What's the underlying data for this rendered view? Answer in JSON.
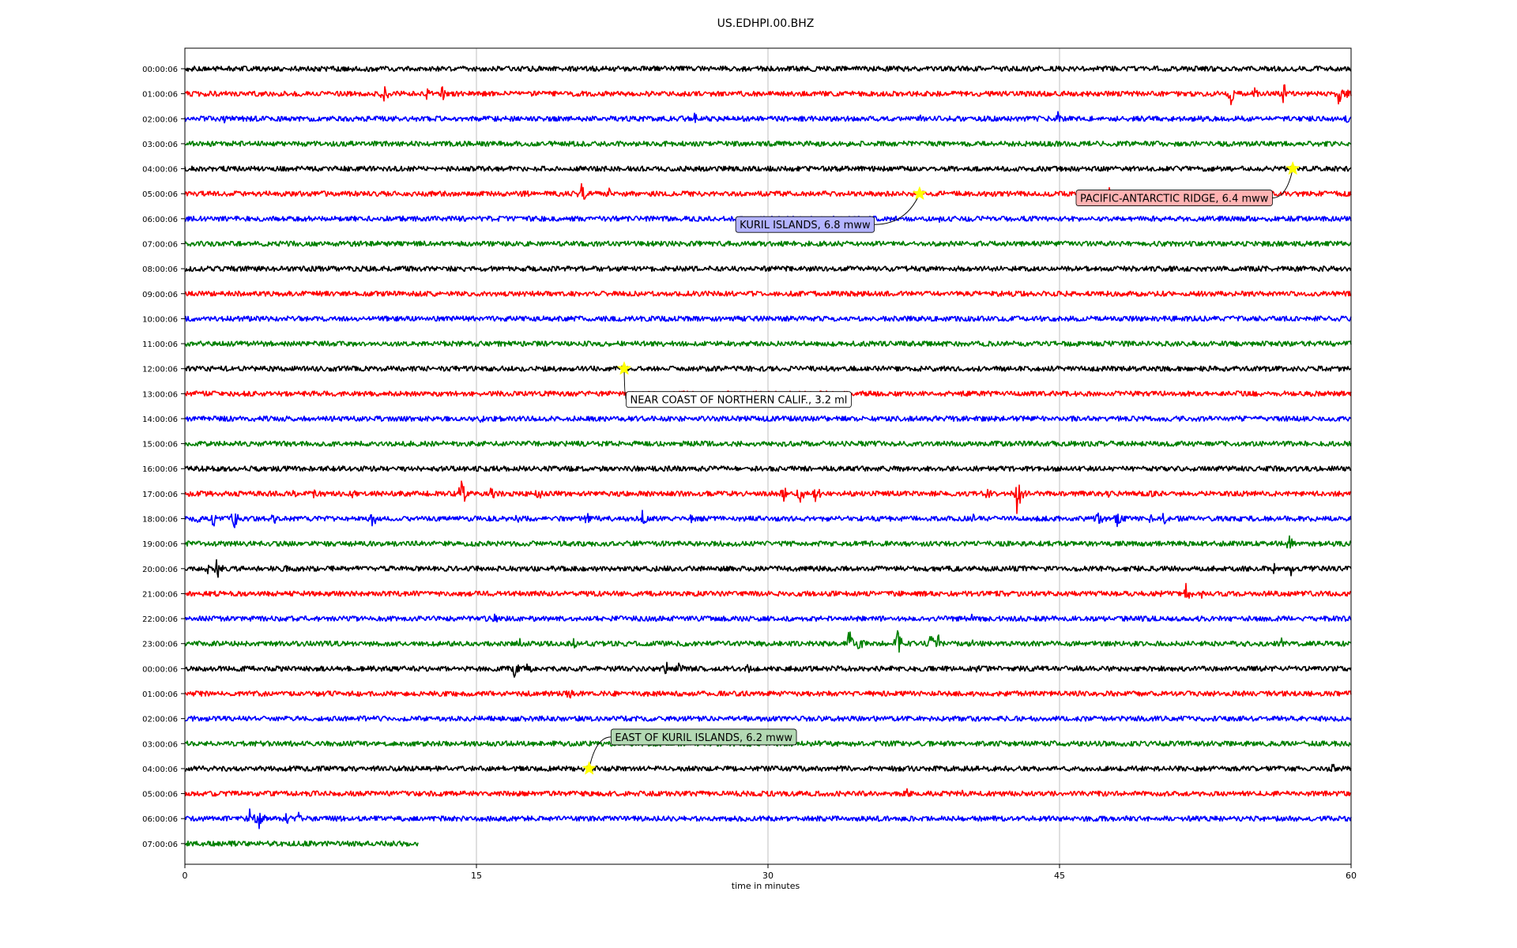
{
  "chart_data": {
    "type": "line",
    "title": "US.EDHPI.00.BHZ",
    "xlabel": "time in minutes",
    "ylabel": "",
    "xlim": [
      0,
      60
    ],
    "x_ticks": [
      "0",
      "15",
      "30",
      "45",
      "60"
    ],
    "grid": "vertical at 15-minute ticks",
    "row_colors": [
      "#000000",
      "#ff0000",
      "#0000ff",
      "#008000"
    ],
    "rows": [
      {
        "label": "00:00:06",
        "events": [
          [
            9.4,
            0.5
          ]
        ]
      },
      {
        "label": "01:00:06",
        "events": [
          [
            10.2,
            0.9
          ],
          [
            12.4,
            0.6
          ],
          [
            13.2,
            0.7
          ],
          [
            53.8,
            1.0
          ],
          [
            55.0,
            0.6
          ],
          [
            56.5,
            1.1
          ],
          [
            59.3,
            1.0
          ],
          [
            59.9,
            0.8
          ]
        ]
      },
      {
        "label": "02:00:06",
        "events": [
          [
            2.0,
            0.4
          ],
          [
            26.2,
            0.5
          ],
          [
            37.8,
            0.4
          ],
          [
            44.9,
            0.7
          ],
          [
            59.7,
            0.6
          ]
        ]
      },
      {
        "label": "03:00:06",
        "events": []
      },
      {
        "label": "04:00:06",
        "events": []
      },
      {
        "label": "05:00:06",
        "events": [
          [
            17.4,
            0.8
          ],
          [
            20.3,
            1.2
          ],
          [
            21.8,
            0.6
          ],
          [
            47.4,
            0.9
          ]
        ]
      },
      {
        "label": "06:00:06",
        "events": [
          [
            38.8,
            0.3
          ]
        ]
      },
      {
        "label": "07:00:06",
        "events": []
      },
      {
        "label": "08:00:06",
        "events": []
      },
      {
        "label": "09:00:06",
        "events": []
      },
      {
        "label": "10:00:06",
        "events": []
      },
      {
        "label": "11:00:06",
        "events": [
          [
            31.8,
            0.3
          ]
        ]
      },
      {
        "label": "12:00:06",
        "events": []
      },
      {
        "label": "13:00:06",
        "events": []
      },
      {
        "label": "14:00:06",
        "events": [
          [
            15.2,
            0.4
          ],
          [
            36.5,
            0.3
          ]
        ]
      },
      {
        "label": "15:00:06",
        "events": []
      },
      {
        "label": "16:00:06",
        "events": [
          [
            0.1,
            0.3
          ]
        ]
      },
      {
        "label": "17:00:06",
        "events": [
          [
            5.5,
            0.5
          ],
          [
            6.5,
            0.6
          ],
          [
            8.6,
            0.7
          ],
          [
            14.2,
            1.3
          ],
          [
            15.7,
            0.8
          ],
          [
            18.1,
            0.8
          ],
          [
            30.7,
            0.9
          ],
          [
            31.6,
            1.1
          ],
          [
            32.4,
            1.0
          ],
          [
            41.2,
            0.7
          ],
          [
            42.8,
            1.6
          ],
          [
            47.5,
            0.5
          ],
          [
            49.7,
            0.5
          ],
          [
            57.9,
            0.4
          ]
        ]
      },
      {
        "label": "18:00:06",
        "events": [
          [
            0.6,
            0.6
          ],
          [
            1.4,
            0.9
          ],
          [
            2.5,
            1.0
          ],
          [
            4.4,
            1.2
          ],
          [
            9.6,
            0.9
          ],
          [
            17.0,
            0.5
          ],
          [
            20.6,
            0.7
          ],
          [
            23.5,
            0.8
          ],
          [
            26.0,
            0.4
          ],
          [
            40.5,
            0.6
          ],
          [
            46.9,
            0.9
          ],
          [
            47.9,
            0.9
          ],
          [
            49.6,
            0.5
          ],
          [
            50.3,
            0.6
          ]
        ]
      },
      {
        "label": "19:00:06",
        "events": [
          [
            56.8,
            0.9
          ]
        ]
      },
      {
        "label": "20:00:06",
        "events": [
          [
            1.1,
            0.7
          ],
          [
            1.6,
            1.1
          ],
          [
            5.2,
            0.3
          ],
          [
            56.0,
            0.5
          ],
          [
            56.9,
            0.6
          ]
        ]
      },
      {
        "label": "21:00:06",
        "events": [
          [
            50.1,
            0.6
          ],
          [
            51.5,
            0.9
          ],
          [
            52.3,
            0.5
          ]
        ]
      },
      {
        "label": "22:00:06",
        "events": [
          [
            15.9,
            0.6
          ],
          [
            40.4,
            0.5
          ]
        ]
      },
      {
        "label": "23:00:06",
        "events": [
          [
            17.2,
            0.5
          ],
          [
            20.0,
            0.4
          ],
          [
            34.1,
            1.5
          ],
          [
            34.6,
            0.9
          ],
          [
            36.6,
            1.3
          ],
          [
            38.3,
            1.0
          ],
          [
            38.7,
            1.3
          ],
          [
            40.5,
            0.4
          ],
          [
            56.4,
            0.5
          ]
        ]
      },
      {
        "label": "00:00:06",
        "events": [
          [
            16.9,
            0.8
          ],
          [
            17.6,
            0.7
          ],
          [
            24.7,
            0.7
          ],
          [
            25.4,
            0.6
          ],
          [
            28.9,
            0.5
          ],
          [
            40.7,
            0.4
          ]
        ]
      },
      {
        "label": "01:00:06",
        "events": [
          [
            19.6,
            0.9
          ]
        ]
      },
      {
        "label": "02:00:06",
        "events": []
      },
      {
        "label": "03:00:06",
        "events": []
      },
      {
        "label": "04:00:06",
        "events": [
          [
            59.0,
            0.6
          ]
        ]
      },
      {
        "label": "05:00:06",
        "events": [
          [
            37.1,
            0.5
          ],
          [
            40.0,
            0.3
          ]
        ]
      },
      {
        "label": "06:00:06",
        "events": [
          [
            3.3,
            1.1
          ],
          [
            3.8,
            0.9
          ],
          [
            5.2,
            0.5
          ],
          [
            5.8,
            0.6
          ]
        ]
      },
      {
        "label": "07:00:06",
        "end_minute": 12.0,
        "events": []
      }
    ],
    "annotations": [
      {
        "row": 5,
        "minute": 37.8,
        "text": "KURIL ISLANDS, 6.8 mww",
        "box_color": "#b3b3ff"
      },
      {
        "row": 4,
        "minute": 57.0,
        "text": "PACIFIC-ANTARCTIC RIDGE, 6.4 mww",
        "box_color": "#ffb3b3"
      },
      {
        "row": 12,
        "minute": 22.6,
        "text": "NEAR COAST OF NORTHERN CALIF., 3.2 ml",
        "box_color": "#ffffff"
      },
      {
        "row": 28,
        "minute": 20.8,
        "text": "EAST OF KURIL ISLANDS, 6.2 mww",
        "box_color": "#b3d9b3"
      }
    ]
  }
}
